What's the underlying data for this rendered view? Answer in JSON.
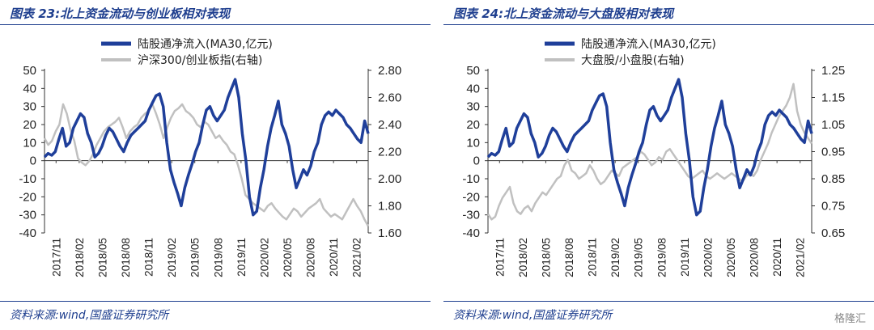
{
  "panels": [
    {
      "title": "图表 23:北上资金流动与创业板相对表现",
      "source": "资料来源:wind,国盛证券研究所"
    },
    {
      "title": "图表 24:北上资金流动与大盘股相对表现",
      "source": "资料来源:wind,国盛证券研究所"
    }
  ],
  "watermark": "格隆汇",
  "chart_data": [
    {
      "type": "line",
      "legend_position": "top-center",
      "grid": false,
      "y_left": {
        "range": [
          -40,
          50
        ],
        "ticks": [
          "50",
          "40",
          "30",
          "20",
          "10",
          "0",
          "-10",
          "-20",
          "-30",
          "-40"
        ]
      },
      "y_right": {
        "range": [
          1.6,
          2.8
        ],
        "ticks": [
          "2.80",
          "2.60",
          "2.40",
          "2.20",
          "2.00",
          "1.80",
          "1.60"
        ]
      },
      "x_ticks": [
        "2017/11",
        "2018/02",
        "2018/05",
        "2018/08",
        "2018/11",
        "2019/02",
        "2019/05",
        "2019/08",
        "2019/11",
        "2020/02",
        "2020/05",
        "2020/08",
        "2020/11",
        "2021/02"
      ],
      "series": [
        {
          "name": "陆股通净流入(MA30,亿元)",
          "axis": "left",
          "color": "#1f3f9a",
          "values": [
            2,
            4,
            3,
            5,
            12,
            18,
            8,
            10,
            18,
            22,
            26,
            24,
            15,
            10,
            2,
            4,
            8,
            14,
            18,
            16,
            12,
            8,
            5,
            10,
            14,
            16,
            18,
            20,
            22,
            28,
            32,
            36,
            37,
            30,
            10,
            -5,
            -12,
            -18,
            -25,
            -15,
            -8,
            -2,
            5,
            10,
            20,
            28,
            30,
            25,
            22,
            25,
            28,
            35,
            40,
            45,
            35,
            15,
            0,
            -20,
            -30,
            -28,
            -15,
            -5,
            8,
            18,
            25,
            33,
            20,
            15,
            8,
            -5,
            -15,
            -10,
            -5,
            -8,
            -3,
            5,
            10,
            20,
            25,
            27,
            25,
            28,
            26,
            24,
            20,
            18,
            15,
            12,
            10,
            22,
            15
          ]
        },
        {
          "name": "沪深300/创业板指(右轴)",
          "axis": "right",
          "color": "#c0c0c0",
          "values": [
            2.3,
            2.25,
            2.28,
            2.35,
            2.4,
            2.55,
            2.48,
            2.36,
            2.28,
            2.15,
            2.12,
            2.1,
            2.13,
            2.18,
            2.25,
            2.3,
            2.35,
            2.38,
            2.4,
            2.42,
            2.45,
            2.38,
            2.3,
            2.35,
            2.38,
            2.4,
            2.45,
            2.48,
            2.5,
            2.55,
            2.48,
            2.4,
            2.3,
            2.38,
            2.45,
            2.5,
            2.52,
            2.55,
            2.5,
            2.48,
            2.45,
            2.4,
            2.38,
            2.42,
            2.4,
            2.35,
            2.3,
            2.32,
            2.28,
            2.25,
            2.2,
            2.18,
            2.1,
            2.0,
            1.88,
            1.85,
            1.82,
            1.8,
            1.78,
            1.76,
            1.8,
            1.82,
            1.78,
            1.75,
            1.72,
            1.7,
            1.74,
            1.78,
            1.76,
            1.72,
            1.75,
            1.78,
            1.8,
            1.82,
            1.85,
            1.78,
            1.75,
            1.72,
            1.74,
            1.72,
            1.7,
            1.75,
            1.8,
            1.85,
            1.8,
            1.76,
            1.7,
            1.65
          ]
        }
      ]
    },
    {
      "type": "line",
      "legend_position": "top-center",
      "grid": false,
      "y_left": {
        "range": [
          -40,
          50
        ],
        "ticks": [
          "50",
          "40",
          "30",
          "20",
          "10",
          "0",
          "-10",
          "-20",
          "-30",
          "-40"
        ]
      },
      "y_right": {
        "range": [
          0.65,
          1.25
        ],
        "ticks": [
          "1.25",
          "1.15",
          "1.05",
          "0.95",
          "0.85",
          "0.75",
          "0.65"
        ]
      },
      "x_ticks": [
        "2017/11",
        "2018/02",
        "2018/05",
        "2018/08",
        "2018/11",
        "2019/02",
        "2019/05",
        "2019/08",
        "2019/11",
        "2020/02",
        "2020/05",
        "2020/08",
        "2020/11",
        "2021/02"
      ],
      "series": [
        {
          "name": "陆股通净流入(MA30,亿元)",
          "axis": "left",
          "color": "#1f3f9a",
          "values": [
            2,
            4,
            3,
            5,
            12,
            18,
            8,
            10,
            18,
            22,
            26,
            24,
            15,
            10,
            2,
            4,
            8,
            14,
            18,
            16,
            12,
            8,
            5,
            10,
            14,
            16,
            18,
            20,
            22,
            28,
            32,
            36,
            37,
            30,
            10,
            -5,
            -12,
            -18,
            -25,
            -15,
            -8,
            -2,
            5,
            10,
            20,
            28,
            30,
            25,
            22,
            25,
            28,
            35,
            40,
            45,
            35,
            15,
            0,
            -20,
            -30,
            -28,
            -15,
            -5,
            8,
            18,
            25,
            33,
            20,
            15,
            8,
            -5,
            -15,
            -10,
            -5,
            -8,
            -3,
            5,
            10,
            20,
            25,
            27,
            25,
            28,
            26,
            24,
            20,
            18,
            15,
            12,
            10,
            22,
            15
          ]
        },
        {
          "name": "大盘股/小盘股(右轴)",
          "axis": "right",
          "color": "#c0c0c0",
          "values": [
            0.72,
            0.7,
            0.71,
            0.75,
            0.78,
            0.8,
            0.82,
            0.76,
            0.73,
            0.72,
            0.74,
            0.75,
            0.73,
            0.76,
            0.78,
            0.8,
            0.79,
            0.81,
            0.83,
            0.85,
            0.86,
            0.9,
            0.92,
            0.88,
            0.87,
            0.85,
            0.86,
            0.87,
            0.9,
            0.88,
            0.85,
            0.83,
            0.84,
            0.86,
            0.88,
            0.87,
            0.86,
            0.89,
            0.9,
            0.91,
            0.92,
            0.93,
            0.95,
            0.94,
            0.92,
            0.9,
            0.91,
            0.93,
            0.92,
            0.95,
            0.96,
            0.94,
            0.92,
            0.9,
            0.88,
            0.86,
            0.85,
            0.86,
            0.87,
            0.88,
            0.86,
            0.85,
            0.86,
            0.87,
            0.86,
            0.85,
            0.86,
            0.87,
            0.86,
            0.85,
            0.84,
            0.86,
            0.87,
            0.86,
            0.88,
            0.92,
            0.95,
            0.98,
            1.02,
            1.05,
            1.08,
            1.1,
            1.12,
            1.15,
            1.2,
            1.1,
            1.05,
            1.02,
            1.0,
            0.98
          ]
        }
      ]
    }
  ]
}
